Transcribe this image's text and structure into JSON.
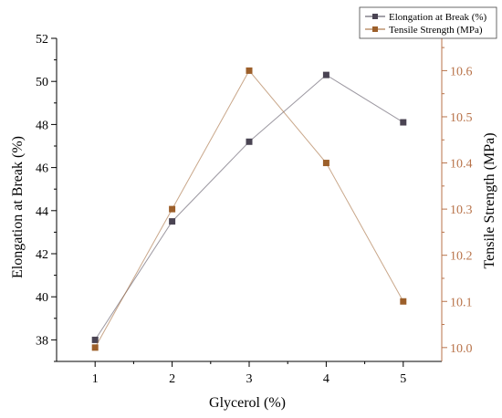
{
  "chart_data": {
    "type": "line",
    "xlabel": "Glycerol (%)",
    "x": [
      1,
      2,
      3,
      4,
      5
    ],
    "xticks": [
      "1",
      "2",
      "3",
      "4",
      "5"
    ],
    "xlim": [
      0.5,
      5.5
    ],
    "y_left": {
      "label": "Elongation at Break (%)",
      "ticks": [
        "38",
        "40",
        "42",
        "44",
        "46",
        "48",
        "50",
        "52"
      ],
      "lim": [
        37,
        52
      ]
    },
    "y_right": {
      "label": "Tensile Strength (MPa)",
      "ticks": [
        "10.0",
        "10.1",
        "10.2",
        "10.3",
        "10.4",
        "10.5",
        "10.6"
      ],
      "lim": [
        9.97,
        10.67
      ]
    },
    "series": [
      {
        "name": "Elongation at Break (%)",
        "axis": "left",
        "color": "#4a4453",
        "values": [
          38.0,
          43.5,
          47.2,
          50.3,
          48.1
        ]
      },
      {
        "name": "Tensile Strength (MPa)",
        "axis": "right",
        "color": "#9c5f2a",
        "values": [
          10.0,
          10.3,
          10.6,
          10.4,
          10.1
        ]
      }
    ],
    "right_axis_color": "#b8734a",
    "grid": false,
    "legend_position": "top-right"
  }
}
